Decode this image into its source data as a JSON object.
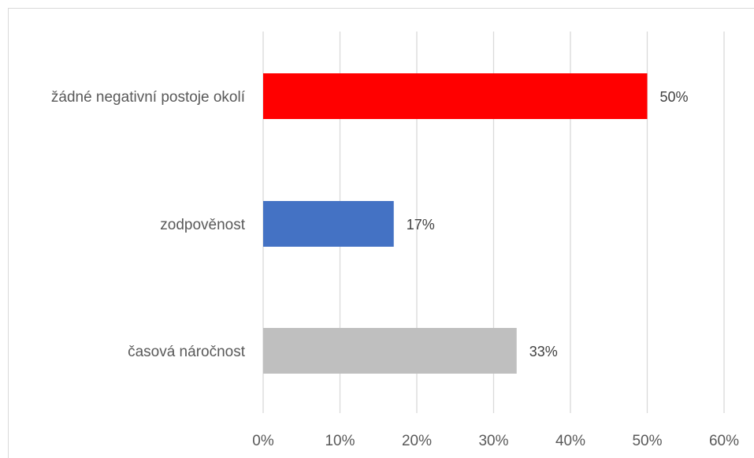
{
  "chart_data": {
    "type": "bar",
    "orientation": "horizontal",
    "categories": [
      "žádné negativní postoje okolí",
      "zodpověnost",
      "časová náročnost"
    ],
    "values": [
      50,
      17,
      33
    ],
    "value_labels": [
      "50%",
      "17%",
      "33%"
    ],
    "colors": [
      "#ff0000",
      "#4472c4",
      "#bfbfbf"
    ],
    "xlim": [
      0,
      60
    ],
    "xticks": [
      0,
      10,
      20,
      30,
      40,
      50,
      60
    ],
    "xtick_labels": [
      "0%",
      "10%",
      "20%",
      "30%",
      "40%",
      "50%",
      "60%"
    ],
    "grid": true,
    "legend": "none"
  }
}
